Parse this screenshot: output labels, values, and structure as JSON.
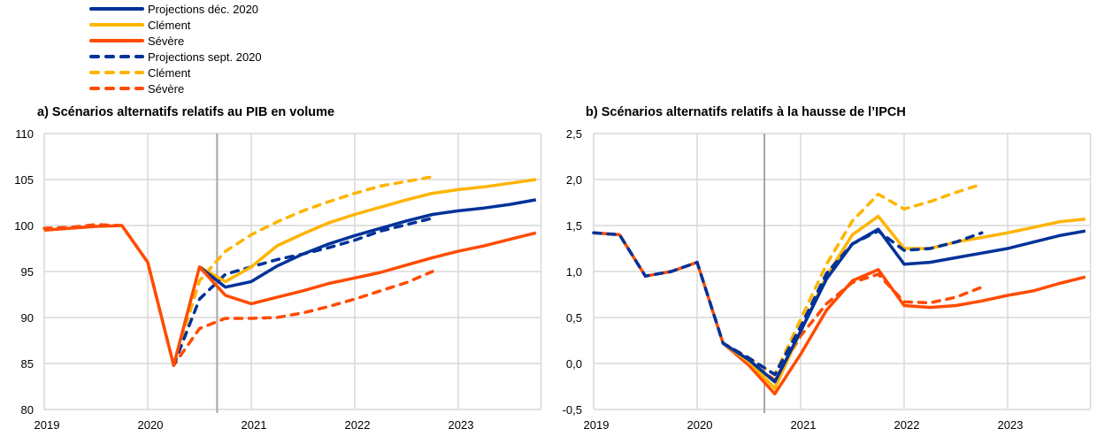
{
  "legend": [
    {
      "label": "Projections déc. 2020",
      "color": "#003299",
      "style": "solid"
    },
    {
      "label": "Clément",
      "color": "#FFB400",
      "style": "solid"
    },
    {
      "label": "Sévère",
      "color": "#FF4B00",
      "style": "solid"
    },
    {
      "label": "Projections sept. 2020",
      "color": "#003299",
      "style": "dashed"
    },
    {
      "label": "Clément",
      "color": "#FFB400",
      "style": "dashed"
    },
    {
      "label": "Sévère",
      "color": "#FF4B00",
      "style": "dashed"
    }
  ],
  "chart_data": [
    {
      "type": "line",
      "title": "a) Scénarios alternatifs relatifs au PIB en volume",
      "xlabel": "",
      "ylabel": "",
      "xlim": [
        2019,
        2023.8
      ],
      "ylim": [
        80,
        110
      ],
      "yticks": [
        80,
        85,
        90,
        95,
        100,
        105,
        110
      ],
      "ytick_labels": [
        "80",
        "85",
        "90",
        "95",
        "100",
        "105",
        "110"
      ],
      "xticks": [
        2019,
        2020,
        2021,
        2022,
        2023
      ],
      "xtick_labels": [
        "2019",
        "2020",
        "2021",
        "2022",
        "2023"
      ],
      "vline": 2020.67,
      "grid": true,
      "series": [
        {
          "name": "Projections sept. 2020 - Sévère",
          "color": "#FF4B00",
          "style": "dashed",
          "x": [
            2019,
            2019.25,
            2019.5,
            2019.75,
            2020,
            2020.25,
            2020.5,
            2020.75,
            2021,
            2021.25,
            2021.5,
            2021.75,
            2022,
            2022.25,
            2022.5,
            2022.75
          ],
          "y": [
            99.7,
            99.8,
            100.1,
            100.0,
            96.0,
            84.8,
            88.8,
            89.9,
            89.9,
            90.0,
            90.5,
            91.2,
            92.0,
            92.9,
            93.8,
            95.0
          ]
        },
        {
          "name": "Projections sept. 2020 - Clément",
          "color": "#FFB400",
          "style": "dashed",
          "x": [
            2020.25,
            2020.5,
            2020.75,
            2021,
            2021.25,
            2021.5,
            2021.75,
            2022,
            2022.25,
            2022.5,
            2022.75
          ],
          "y": [
            84.8,
            94.0,
            97.2,
            99.0,
            100.4,
            101.6,
            102.6,
            103.5,
            104.3,
            104.8,
            105.3
          ]
        },
        {
          "name": "Projections sept. 2020",
          "color": "#003299",
          "style": "dashed",
          "x": [
            2020.25,
            2020.5,
            2020.75,
            2021,
            2021.25,
            2021.5,
            2021.75,
            2022,
            2022.25,
            2022.5,
            2022.75
          ],
          "y": [
            84.8,
            92.0,
            94.7,
            95.5,
            96.3,
            96.9,
            97.6,
            98.4,
            99.4,
            100.1,
            100.8
          ]
        },
        {
          "name": "Projections déc. 2020 - Clément",
          "color": "#FFB400",
          "style": "solid",
          "x": [
            2020.5,
            2020.75,
            2021,
            2021.25,
            2021.5,
            2021.75,
            2022,
            2022.25,
            2022.5,
            2022.75,
            2023,
            2023.25,
            2023.5,
            2023.75
          ],
          "y": [
            95.5,
            93.9,
            95.5,
            97.8,
            99.1,
            100.3,
            101.2,
            102.0,
            102.8,
            103.5,
            103.9,
            104.2,
            104.6,
            105.0
          ]
        },
        {
          "name": "Projections déc. 2020",
          "color": "#003299",
          "style": "solid",
          "x": [
            2020.5,
            2020.75,
            2021,
            2021.25,
            2021.5,
            2021.75,
            2022,
            2022.25,
            2022.5,
            2022.75,
            2023,
            2023.25,
            2023.5,
            2023.75
          ],
          "y": [
            95.5,
            93.3,
            93.9,
            95.6,
            96.9,
            98.0,
            98.9,
            99.7,
            100.5,
            101.2,
            101.6,
            101.9,
            102.3,
            102.8
          ]
        },
        {
          "name": "Projections déc. 2020 - Sévère",
          "color": "#FF4B00",
          "style": "solid",
          "x": [
            2019,
            2019.25,
            2019.5,
            2019.75,
            2020,
            2020.25,
            2020.5,
            2020.75,
            2021,
            2021.25,
            2021.5,
            2021.75,
            2022,
            2022.25,
            2022.5,
            2022.75,
            2023,
            2023.25,
            2023.5,
            2023.75
          ],
          "y": [
            99.5,
            99.7,
            99.9,
            100.0,
            96.0,
            84.8,
            95.5,
            92.4,
            91.5,
            92.2,
            92.9,
            93.7,
            94.3,
            94.9,
            95.7,
            96.5,
            97.2,
            97.8,
            98.5,
            99.2
          ]
        }
      ]
    },
    {
      "type": "line",
      "title": "b) Scénarios alternatifs relatifs à la hausse de l’IPCH",
      "xlabel": "",
      "ylabel": "",
      "xlim": [
        2019,
        2023.8
      ],
      "ylim": [
        -0.5,
        2.5
      ],
      "yticks": [
        -0.5,
        0,
        0.5,
        1,
        1.5,
        2,
        2.5
      ],
      "ytick_labels": [
        "-0,5",
        "0,0",
        "0,5",
        "1,0",
        "1,5",
        "2,0",
        "2,5"
      ],
      "xticks": [
        2019,
        2020,
        2021,
        2022,
        2023
      ],
      "xtick_labels": [
        "2019",
        "2020",
        "2021",
        "2022",
        "2023"
      ],
      "vline": 2020.65,
      "grid": true,
      "series": [
        {
          "name": "Projections déc. 2020 - Sévère",
          "color": "#FF4B00",
          "style": "solid",
          "x": [
            2019,
            2019.25,
            2019.5,
            2019.75,
            2020,
            2020.25,
            2020.5,
            2020.75,
            2021,
            2021.25,
            2021.5,
            2021.75,
            2022,
            2022.25,
            2022.5,
            2022.75,
            2023,
            2023.25,
            2023.5,
            2023.75
          ],
          "y": [
            1.42,
            1.4,
            0.95,
            1.0,
            1.1,
            0.22,
            -0.02,
            -0.33,
            0.1,
            0.58,
            0.9,
            1.02,
            0.63,
            0.61,
            0.63,
            0.68,
            0.74,
            0.79,
            0.87,
            0.94
          ]
        },
        {
          "name": "Projections sept. 2020 - Sévère",
          "color": "#FF4B00",
          "style": "dashed",
          "x": [
            2020.25,
            2020.5,
            2020.75,
            2021,
            2021.25,
            2021.5,
            2021.75,
            2022,
            2022.25,
            2022.5,
            2022.75
          ],
          "y": [
            0.22,
            0.02,
            -0.18,
            0.3,
            0.65,
            0.88,
            0.97,
            0.67,
            0.66,
            0.72,
            0.83
          ]
        },
        {
          "name": "Projections déc. 2020 - Clément",
          "color": "#FFB400",
          "style": "solid",
          "x": [
            2020.25,
            2020.5,
            2020.75,
            2021,
            2021.25,
            2021.5,
            2021.75,
            2022,
            2022.25,
            2022.5,
            2022.75,
            2023,
            2023.25,
            2023.5,
            2023.75
          ],
          "y": [
            0.22,
            0.02,
            -0.27,
            0.35,
            0.95,
            1.4,
            1.6,
            1.25,
            1.25,
            1.32,
            1.37,
            1.42,
            1.48,
            1.54,
            1.57
          ]
        },
        {
          "name": "Projections sept. 2020 - Clément",
          "color": "#FFB400",
          "style": "dashed",
          "x": [
            2020.25,
            2020.5,
            2020.75,
            2021,
            2021.25,
            2021.5,
            2021.75,
            2022,
            2022.25,
            2022.5,
            2022.75
          ],
          "y": [
            0.22,
            0.06,
            -0.12,
            0.48,
            1.08,
            1.55,
            1.84,
            1.68,
            1.76,
            1.86,
            1.95
          ]
        },
        {
          "name": "Projections déc. 2020",
          "color": "#003299",
          "style": "solid",
          "x": [
            2020.25,
            2020.5,
            2020.75,
            2021,
            2021.25,
            2021.5,
            2021.75,
            2022,
            2022.25,
            2022.5,
            2022.75,
            2023,
            2023.25,
            2023.5,
            2023.75
          ],
          "y": [
            0.22,
            0.04,
            -0.2,
            0.35,
            0.92,
            1.3,
            1.46,
            1.08,
            1.1,
            1.15,
            1.2,
            1.25,
            1.32,
            1.39,
            1.44
          ]
        },
        {
          "name": "Projections sept. 2020",
          "color": "#003299",
          "style": "dashed",
          "x": [
            2019,
            2019.25,
            2019.5,
            2019.75,
            2020,
            2020.25,
            2020.5,
            2020.75,
            2021,
            2021.25,
            2021.5,
            2021.75,
            2022,
            2022.25,
            2022.5,
            2022.75
          ],
          "y": [
            1.42,
            1.4,
            0.95,
            1.0,
            1.1,
            0.22,
            0.06,
            -0.12,
            0.4,
            0.98,
            1.3,
            1.44,
            1.23,
            1.25,
            1.32,
            1.42
          ]
        }
      ]
    }
  ]
}
